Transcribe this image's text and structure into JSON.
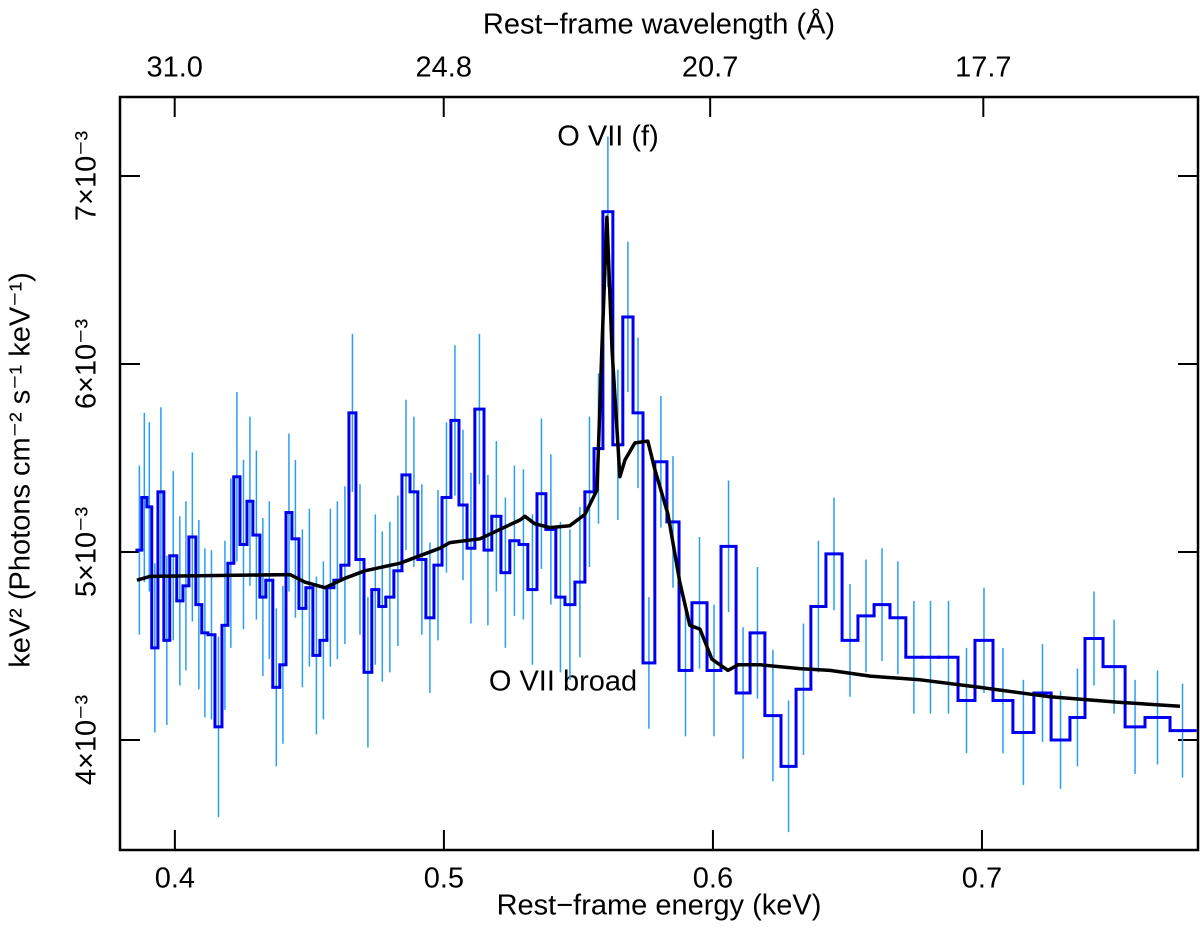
{
  "chart_data": {
    "type": "histogram",
    "x_label": "Rest−frame energy (keV)",
    "x2_label": "Rest−frame wavelength (Å)",
    "y_label": "keV² (Photons cm⁻² s⁻¹ keV⁻¹)",
    "annotations": [
      "O VII (f)",
      "O VII broad"
    ],
    "xlim": [
      0.3796,
      0.7803
    ],
    "xticks": [
      0.4,
      0.5,
      0.6,
      0.7
    ],
    "x2_scale": "reciprocal",
    "x2lim": [
      32.66,
      15.89
    ],
    "x2ticks": [
      {
        "value": 31.0,
        "label": "31.0"
      },
      24.8,
      20.7,
      17.7
    ],
    "ylim": [
      0.003415,
      0.00742
    ],
    "yticks": [
      {
        "value": 0.004,
        "label": "4×10⁻³"
      },
      {
        "value": 0.005,
        "label": "5×10⁻³"
      },
      {
        "value": 0.006,
        "label": "6×10⁻³"
      },
      {
        "value": 0.007,
        "label": "7×10⁻³"
      }
    ],
    "color": "#0000ee",
    "error_color": "#2a9df4",
    "bins": [
      0.3859,
      0.3877,
      0.3896,
      0.3914,
      0.3937,
      0.3959,
      0.3981,
      0.4007,
      0.403,
      0.4052,
      0.4078,
      0.41,
      0.4123,
      0.4149,
      0.4175,
      0.4197,
      0.4219,
      0.4242,
      0.4268,
      0.429,
      0.4316,
      0.4338,
      0.4364,
      0.439,
      0.4413,
      0.4435,
      0.4461,
      0.4487,
      0.4513,
      0.4539,
      0.4565,
      0.4591,
      0.4617,
      0.4647,
      0.4673,
      0.4703,
      0.4732,
      0.4758,
      0.4784,
      0.4814,
      0.4844,
      0.4874,
      0.4903,
      0.4933,
      0.4963,
      0.4993,
      0.5026,
      0.5056,
      0.5086,
      0.5115,
      0.5149,
      0.5178,
      0.5212,
      0.5245,
      0.5279,
      0.5312,
      0.5346,
      0.5379,
      0.5416,
      0.545,
      0.5487,
      0.5524,
      0.5558,
      0.5591,
      0.5628,
      0.5665,
      0.5703,
      0.574,
      0.5784,
      0.5829,
      0.5874,
      0.5922,
      0.5978,
      0.603,
      0.6086,
      0.6138,
      0.6193,
      0.6253,
      0.6309,
      0.6364,
      0.642,
      0.648,
      0.6539,
      0.6599,
      0.6658,
      0.6717,
      0.6777,
      0.684,
      0.6911,
      0.6974,
      0.7041,
      0.7115,
      0.7193,
      0.7257,
      0.7327,
      0.7383,
      0.745,
      0.7532,
      0.7606,
      0.7699,
      0.7792
    ],
    "values": [
      0.00501,
      0.00529,
      0.00524,
      0.00449,
      0.00532,
      0.00453,
      0.00498,
      0.00474,
      0.00482,
      0.00508,
      0.00472,
      0.00457,
      0.00456,
      0.00407,
      0.00461,
      0.00494,
      0.0054,
      0.00504,
      0.00527,
      0.00509,
      0.00476,
      0.00485,
      0.00428,
      0.0044,
      0.00521,
      0.00507,
      0.0047,
      0.00481,
      0.00445,
      0.00453,
      0.00481,
      0.00485,
      0.00493,
      0.00574,
      0.00496,
      0.00436,
      0.0048,
      0.00471,
      0.00476,
      0.0049,
      0.00541,
      0.00532,
      0.00496,
      0.00465,
      0.00493,
      0.00529,
      0.0057,
      0.00525,
      0.00502,
      0.00576,
      0.00501,
      0.00519,
      0.00489,
      0.00506,
      0.00504,
      0.0048,
      0.00531,
      0.00512,
      0.00476,
      0.00472,
      0.00484,
      0.00532,
      0.00555,
      0.00681,
      0.00557,
      0.00625,
      0.00574,
      0.00441,
      0.00548,
      0.00516,
      0.00437,
      0.00473,
      0.00437,
      0.00503,
      0.00425,
      0.00457,
      0.00413,
      0.00386,
      0.00427,
      0.00471,
      0.00499,
      0.00453,
      0.00466,
      0.00472,
      0.00465,
      0.00444,
      0.00444,
      0.00444,
      0.00421,
      0.00453,
      0.00421,
      0.00404,
      0.00425,
      0.004,
      0.00412,
      0.00454,
      0.00439,
      0.00407,
      0.00412,
      0.00405
    ],
    "errors": [
      0.00045,
      0.00045,
      0.00045,
      0.00045,
      0.00045,
      0.00045,
      0.00045,
      0.00045,
      0.00045,
      0.00045,
      0.00045,
      0.00045,
      0.00045,
      0.00048,
      0.00045,
      0.00045,
      0.00045,
      0.00045,
      0.00045,
      0.00045,
      0.00042,
      0.00042,
      0.00042,
      0.00042,
      0.00042,
      0.00042,
      0.00042,
      0.00042,
      0.00042,
      0.00042,
      0.00042,
      0.00042,
      0.00042,
      0.00042,
      0.0004,
      0.0004,
      0.0004,
      0.0004,
      0.0004,
      0.0004,
      0.0004,
      0.0004,
      0.0004,
      0.0004,
      0.0004,
      0.0004,
      0.0004,
      0.0004,
      0.0004,
      0.0004,
      0.0004,
      0.0004,
      0.0004,
      0.0004,
      0.0004,
      0.0004,
      0.0004,
      0.0004,
      0.0004,
      0.0004,
      0.0004,
      0.0004,
      0.0004,
      0.0004,
      0.0004,
      0.0004,
      0.0004,
      0.00035,
      0.00035,
      0.00035,
      0.00035,
      0.00035,
      0.00035,
      0.00035,
      0.00035,
      0.00035,
      0.00035,
      0.00035,
      0.00035,
      0.00035,
      0.0003,
      0.0003,
      0.0003,
      0.0003,
      0.0003,
      0.0003,
      0.0003,
      0.0003,
      0.00028,
      0.00028,
      0.00028,
      0.00028,
      0.00026,
      0.00026,
      0.00026,
      0.00025,
      0.00025,
      0.00025,
      0.00025,
      0.00025
    ],
    "model_color": "#000000",
    "model_x": [
      0.3859,
      0.3907,
      0.4428,
      0.4483,
      0.4558,
      0.4632,
      0.4706,
      0.4836,
      0.4985,
      0.5022,
      0.5134,
      0.5208,
      0.5283,
      0.5301,
      0.5338,
      0.5394,
      0.5468,
      0.5524,
      0.5569,
      0.5587,
      0.5606,
      0.5625,
      0.5654,
      0.5673,
      0.571,
      0.5758,
      0.5784,
      0.5833,
      0.5877,
      0.5914,
      0.5952,
      0.5996,
      0.6056,
      0.6093,
      0.6175,
      0.6323,
      0.6435,
      0.6584,
      0.677,
      0.6993,
      0.7253,
      0.7513,
      0.7736
    ],
    "model_values": [
      0.00485,
      0.00487,
      0.00488,
      0.00484,
      0.00481,
      0.00486,
      0.0049,
      0.00494,
      0.00502,
      0.00505,
      0.00507,
      0.00512,
      0.00517,
      0.00519,
      0.00515,
      0.00513,
      0.00514,
      0.0052,
      0.00533,
      0.00607,
      0.00678,
      0.00607,
      0.0054,
      0.00549,
      0.00558,
      0.00559,
      0.00544,
      0.0052,
      0.00484,
      0.00461,
      0.00459,
      0.00443,
      0.00437,
      0.0044,
      0.0044,
      0.00438,
      0.00437,
      0.00434,
      0.00432,
      0.00428,
      0.00423,
      0.0042,
      0.00418
    ]
  }
}
